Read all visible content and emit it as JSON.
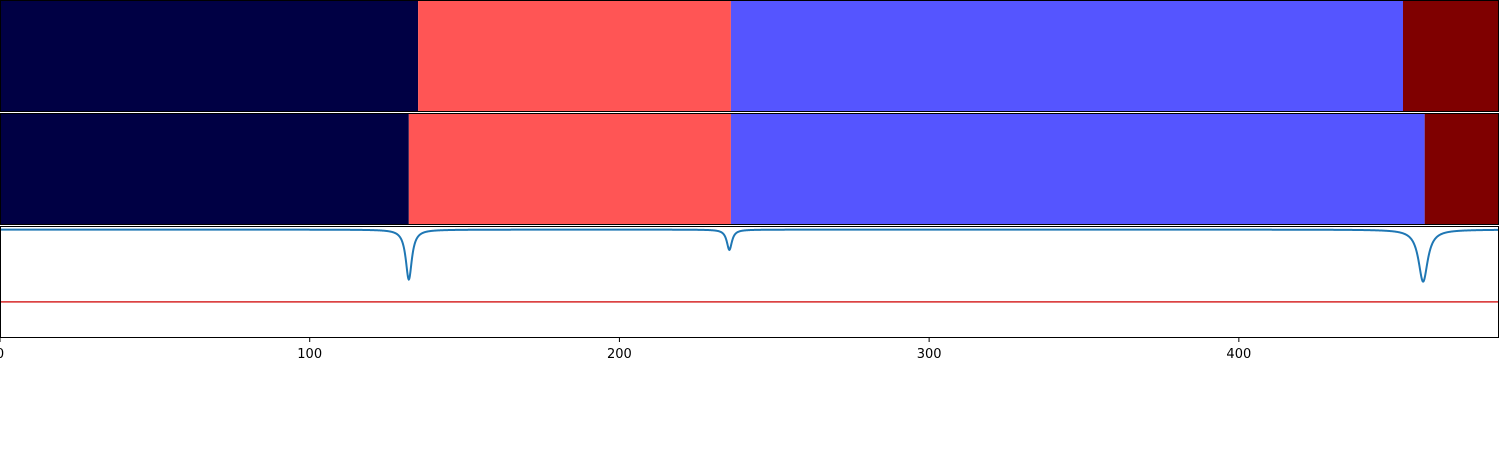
{
  "chart_data": {
    "type": "segmentation_timeline",
    "x_range": [
      0,
      484
    ],
    "x_ticks": [
      0,
      100,
      200,
      300,
      400
    ],
    "x_tick_labels": [
      "0",
      "100",
      "200",
      "300",
      "400"
    ],
    "grid": false,
    "legend": "none",
    "segment_rows": [
      {
        "segments": [
          {
            "start": 0,
            "end": 135,
            "color": "#000044"
          },
          {
            "start": 135,
            "end": 236,
            "color": "#ff5555"
          },
          {
            "start": 236,
            "end": 453,
            "color": "#5555ff"
          },
          {
            "start": 453,
            "end": 484,
            "color": "#7f0000"
          }
        ]
      },
      {
        "segments": [
          {
            "start": 0,
            "end": 132,
            "color": "#000044"
          },
          {
            "start": 132,
            "end": 236,
            "color": "#ff5555"
          },
          {
            "start": 236,
            "end": 460,
            "color": "#5555ff"
          },
          {
            "start": 460,
            "end": 484,
            "color": "#7f0000"
          }
        ]
      }
    ],
    "signal": {
      "color": "#1f77b4",
      "y_range": [
        -1.5,
        0.05
      ],
      "threshold": -1.0,
      "threshold_color": "#d62728",
      "dips": [
        {
          "x": 132,
          "depth": -0.69,
          "width": 1.2
        },
        {
          "x": 235.5,
          "depth": -0.28,
          "width": 1.0
        },
        {
          "x": 459.5,
          "depth": -0.72,
          "width": 1.8
        }
      ]
    }
  }
}
